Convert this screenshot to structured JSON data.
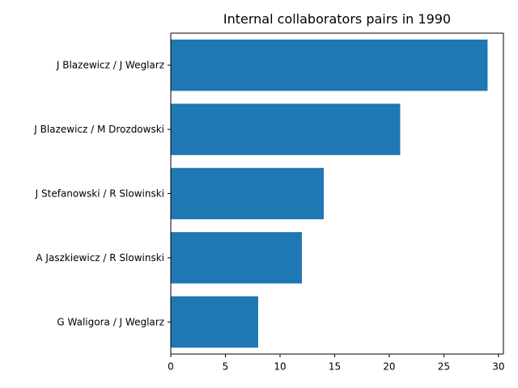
{
  "chart_data": {
    "type": "bar",
    "orientation": "horizontal",
    "title": "Internal collaborators pairs in 1990",
    "xlabel": "",
    "ylabel": "",
    "categories": [
      "J Blazewicz / J Weglarz",
      "J Blazewicz / M Drozdowski",
      "J Stefanowski / R Slowinski",
      "A Jaszkiewicz / R Slowinski",
      "G Waligora / J Weglarz"
    ],
    "values": [
      29,
      21,
      14,
      12,
      8
    ],
    "xlim": [
      0,
      30.45
    ],
    "xticks": [
      0,
      5,
      10,
      15,
      20,
      25,
      30
    ],
    "grid": false,
    "legend": "none",
    "bar_color": "#1f77b4"
  }
}
